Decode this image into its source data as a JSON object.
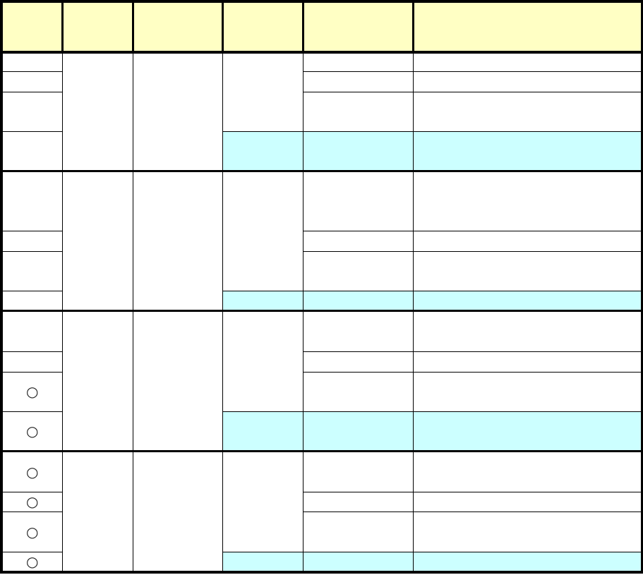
{
  "header": [
    "",
    "",
    "",
    "",
    "",
    ""
  ],
  "colors": {
    "header_bg": "#ffffc4",
    "highlight_bg": "#ccffff",
    "border": "#000000"
  },
  "groups": [
    {
      "marks": [
        "",
        "",
        "",
        ""
      ]
    },
    {
      "marks": [
        "",
        "",
        "",
        ""
      ]
    },
    {
      "marks": [
        "",
        "",
        "○",
        "○"
      ]
    },
    {
      "marks": [
        "○",
        "○",
        "○",
        "○"
      ]
    }
  ]
}
